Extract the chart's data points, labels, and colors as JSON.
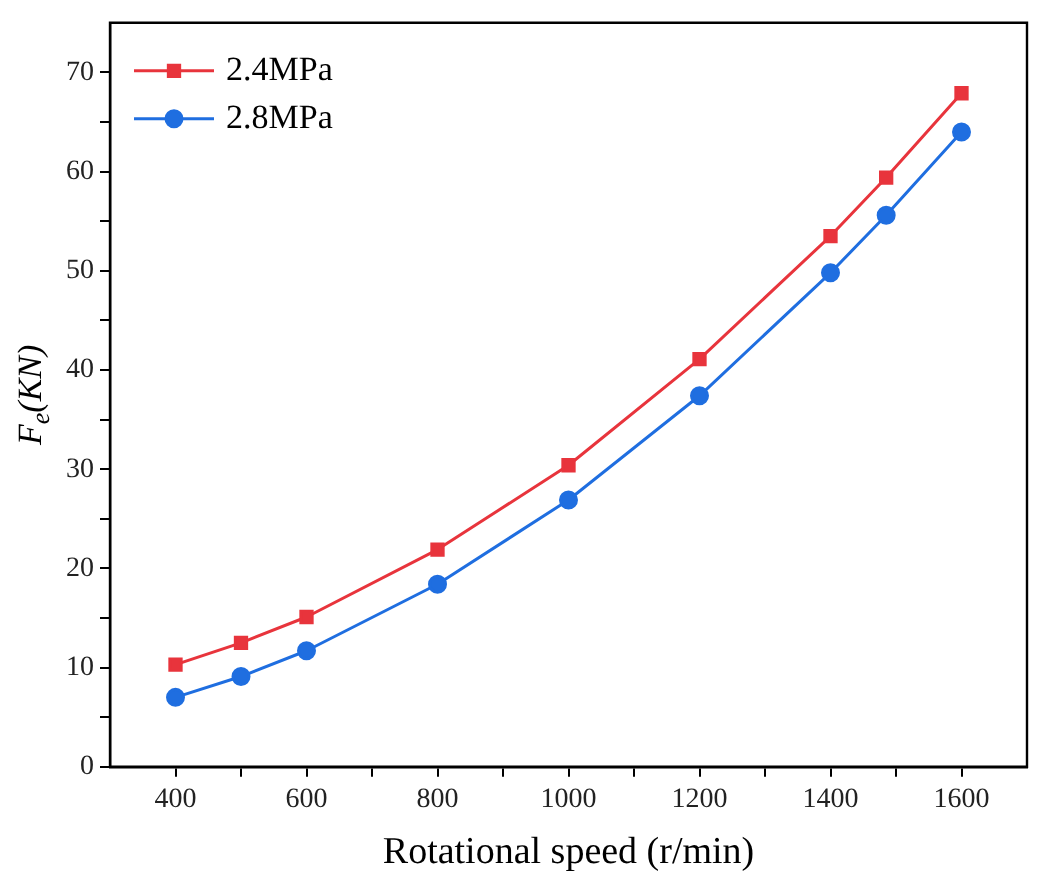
{
  "chart_data": {
    "type": "line",
    "xlabel": "Rotational speed (r/min)",
    "ylabel": "F$_{e}$(KN)",
    "x": [
      400,
      500,
      600,
      800,
      1000,
      1200,
      1400,
      1485,
      1600
    ],
    "series": [
      {
        "name": "2.4MPa",
        "color": "#e8343c",
        "marker": "square",
        "values": [
          10.3,
          12.5,
          15.1,
          21.9,
          30.4,
          41.1,
          53.5,
          59.4,
          67.9
        ]
      },
      {
        "name": "2.8MPa",
        "color": "#1f6ee0",
        "marker": "circle",
        "values": [
          7.0,
          9.1,
          11.7,
          18.4,
          26.9,
          37.4,
          49.8,
          55.6,
          64.0
        ]
      }
    ],
    "xlim": [
      300,
      1700
    ],
    "xticks": [
      400,
      {
        "value": 500,
        "label": null
      },
      600,
      {
        "value": 700,
        "label": null
      },
      800,
      {
        "value": 900,
        "label": null
      },
      1000,
      {
        "value": 1100,
        "label": null
      },
      1200,
      {
        "value": 1300,
        "label": null
      },
      1400,
      {
        "value": 1500,
        "label": null
      },
      1600
    ],
    "ylim": [
      0,
      75
    ],
    "yticks": [
      0,
      {
        "value": 5,
        "label": null
      },
      10,
      {
        "value": 15,
        "label": null
      },
      20,
      {
        "value": 25,
        "label": null
      },
      30,
      {
        "value": 35,
        "label": null
      },
      40,
      {
        "value": 45,
        "label": null
      },
      50,
      {
        "value": 55,
        "label": null
      },
      60,
      {
        "value": 65,
        "label": null
      },
      70
    ],
    "grid": false,
    "legend": "top left",
    "line_style": "solid"
  }
}
